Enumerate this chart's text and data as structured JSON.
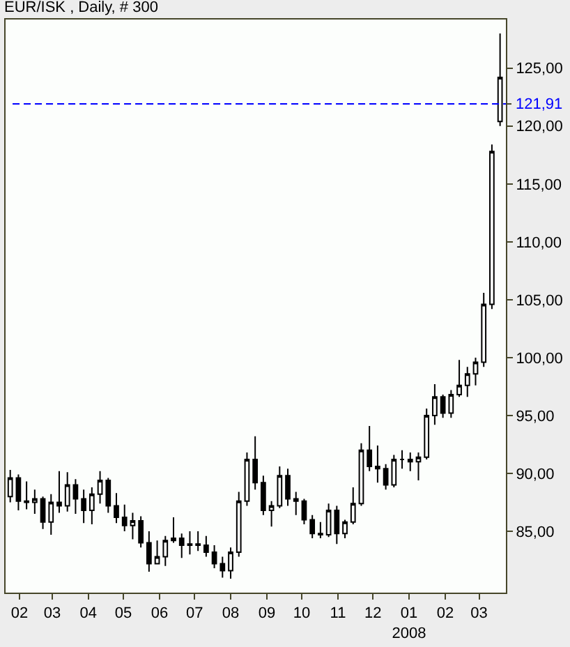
{
  "chart_data": {
    "type": "candlestick",
    "title": "EUR/ISK , Daily, # 300",
    "color": "#000000",
    "x": [
      "2007-01-24",
      "2007-01-31",
      "2007-02-07",
      "2007-02-14",
      "2007-02-21",
      "2007-02-28",
      "2007-03-07",
      "2007-03-14",
      "2007-03-21",
      "2007-03-28",
      "2007-04-04",
      "2007-04-11",
      "2007-04-18",
      "2007-04-25",
      "2007-05-02",
      "2007-05-09",
      "2007-05-16",
      "2007-05-23",
      "2007-05-30",
      "2007-06-06",
      "2007-06-13",
      "2007-06-20",
      "2007-06-27",
      "2007-07-04",
      "2007-07-11",
      "2007-07-18",
      "2007-07-25",
      "2007-08-01",
      "2007-08-08",
      "2007-08-15",
      "2007-08-22",
      "2007-08-29",
      "2007-09-05",
      "2007-09-12",
      "2007-09-19",
      "2007-09-26",
      "2007-10-03",
      "2007-10-10",
      "2007-10-17",
      "2007-10-24",
      "2007-10-31",
      "2007-11-07",
      "2007-11-14",
      "2007-11-21",
      "2007-11-28",
      "2007-12-05",
      "2007-12-12",
      "2007-12-19",
      "2007-12-26",
      "2008-01-02",
      "2008-01-09",
      "2008-01-16",
      "2008-01-23",
      "2008-01-30",
      "2008-02-06",
      "2008-02-13",
      "2008-02-20",
      "2008-02-27",
      "2008-03-05",
      "2008-03-12",
      "2008-03-19"
    ],
    "ohlc": [
      [
        88.0,
        90.3,
        87.5,
        89.6
      ],
      [
        89.6,
        89.9,
        86.8,
        87.6
      ],
      [
        87.6,
        89.3,
        86.9,
        87.5
      ],
      [
        87.5,
        88.6,
        86.5,
        87.8
      ],
      [
        87.8,
        88.0,
        85.2,
        85.8
      ],
      [
        85.8,
        88.2,
        84.7,
        87.5
      ],
      [
        87.5,
        90.2,
        86.6,
        87.2
      ],
      [
        87.2,
        90.1,
        86.7,
        89.0
      ],
      [
        89.0,
        89.5,
        86.5,
        87.8
      ],
      [
        87.8,
        88.6,
        85.7,
        86.8
      ],
      [
        86.8,
        88.8,
        85.6,
        88.2
      ],
      [
        88.2,
        90.2,
        87.4,
        89.4
      ],
      [
        89.4,
        89.6,
        86.6,
        87.2
      ],
      [
        87.2,
        88.3,
        85.7,
        86.2
      ],
      [
        86.2,
        87.3,
        85.0,
        85.5
      ],
      [
        85.5,
        86.6,
        84.3,
        85.9
      ],
      [
        85.9,
        86.3,
        83.6,
        84.0
      ],
      [
        84.0,
        85.0,
        81.5,
        82.2
      ],
      [
        82.2,
        84.2,
        82.2,
        82.8
      ],
      [
        82.8,
        84.6,
        82.0,
        84.2
      ],
      [
        84.2,
        86.2,
        84.0,
        84.4
      ],
      [
        84.4,
        84.8,
        82.7,
        83.8
      ],
      [
        83.8,
        85.0,
        83.0,
        83.9
      ],
      [
        83.9,
        85.0,
        83.3,
        83.8
      ],
      [
        83.8,
        84.6,
        82.8,
        83.2
      ],
      [
        83.2,
        83.8,
        81.8,
        82.2
      ],
      [
        82.2,
        82.8,
        81.0,
        81.6
      ],
      [
        81.6,
        83.6,
        80.9,
        83.2
      ],
      [
        83.2,
        88.4,
        82.8,
        87.6
      ],
      [
        87.6,
        91.8,
        87.2,
        91.2
      ],
      [
        91.2,
        93.2,
        88.6,
        89.2
      ],
      [
        89.2,
        89.8,
        86.4,
        86.8
      ],
      [
        86.8,
        87.6,
        85.4,
        87.2
      ],
      [
        87.2,
        90.6,
        87.0,
        89.8
      ],
      [
        89.8,
        90.4,
        87.2,
        87.8
      ],
      [
        87.8,
        88.4,
        86.4,
        87.6
      ],
      [
        87.6,
        87.8,
        85.6,
        86.0
      ],
      [
        86.0,
        86.4,
        84.4,
        84.8
      ],
      [
        84.8,
        85.8,
        84.4,
        84.7
      ],
      [
        84.7,
        87.4,
        84.5,
        86.8
      ],
      [
        86.8,
        87.2,
        83.9,
        84.8
      ],
      [
        84.8,
        86.0,
        84.4,
        85.8
      ],
      [
        85.8,
        88.8,
        85.6,
        87.4
      ],
      [
        87.4,
        92.6,
        87.2,
        92.0
      ],
      [
        92.0,
        94.1,
        90.2,
        90.6
      ],
      [
        90.6,
        92.4,
        89.2,
        90.4
      ],
      [
        90.4,
        90.8,
        88.6,
        89.0
      ],
      [
        89.0,
        91.6,
        88.8,
        91.2
      ],
      [
        91.2,
        92.0,
        90.4,
        91.2
      ],
      [
        91.2,
        91.8,
        90.2,
        91.0
      ],
      [
        91.0,
        91.8,
        89.4,
        91.4
      ],
      [
        91.4,
        95.6,
        91.2,
        95.0
      ],
      [
        95.0,
        97.7,
        94.2,
        96.6
      ],
      [
        96.6,
        96.8,
        94.8,
        95.2
      ],
      [
        95.2,
        97.2,
        94.8,
        96.8
      ],
      [
        96.8,
        99.8,
        96.6,
        97.6
      ],
      [
        97.6,
        99.2,
        96.6,
        98.6
      ],
      [
        98.6,
        100.0,
        97.6,
        99.6
      ],
      [
        99.6,
        105.6,
        99.2,
        104.6
      ],
      [
        104.6,
        118.4,
        104.2,
        117.8
      ],
      [
        120.4,
        128.0,
        120.0,
        124.2
      ]
    ],
    "xlim": [
      "2007-01-20",
      "2008-03-24"
    ],
    "ylim": [
      79.7,
      129.2
    ],
    "xticks": [
      {
        "value": "2007-02-01",
        "label": "02"
      },
      {
        "value": "2007-03-01",
        "label": "03"
      },
      {
        "value": "2007-04-01",
        "label": "04"
      },
      {
        "value": "2007-05-01",
        "label": "05"
      },
      {
        "value": "2007-06-01",
        "label": "06"
      },
      {
        "value": "2007-07-01",
        "label": "07"
      },
      {
        "value": "2007-08-01",
        "label": "08"
      },
      {
        "value": "2007-09-01",
        "label": "09"
      },
      {
        "value": "2007-10-01",
        "label": "10"
      },
      {
        "value": "2007-11-01",
        "label": "11"
      },
      {
        "value": "2007-12-01",
        "label": "12"
      },
      {
        "value": "2008-01-01",
        "label": "01\n2008"
      },
      {
        "value": "2008-02-01",
        "label": "02"
      },
      {
        "value": "2008-03-01",
        "label": "03"
      }
    ],
    "yticks": [
      {
        "value": 85,
        "label": "85,00"
      },
      {
        "value": 90,
        "label": "90,00"
      },
      {
        "value": 95,
        "label": "95,00"
      },
      {
        "value": 100,
        "label": "100,00"
      },
      {
        "value": 105,
        "label": "105,00"
      },
      {
        "value": 110,
        "label": "110,00"
      },
      {
        "value": 115,
        "label": "115,00"
      },
      {
        "value": 120,
        "label": "120,00"
      },
      {
        "value": 125,
        "label": "125,00"
      }
    ],
    "ref_lines": [
      {
        "axis": "y",
        "value": 121.91,
        "label": "121,91",
        "color": "#0000ff",
        "line_style": "dashed"
      }
    ]
  }
}
